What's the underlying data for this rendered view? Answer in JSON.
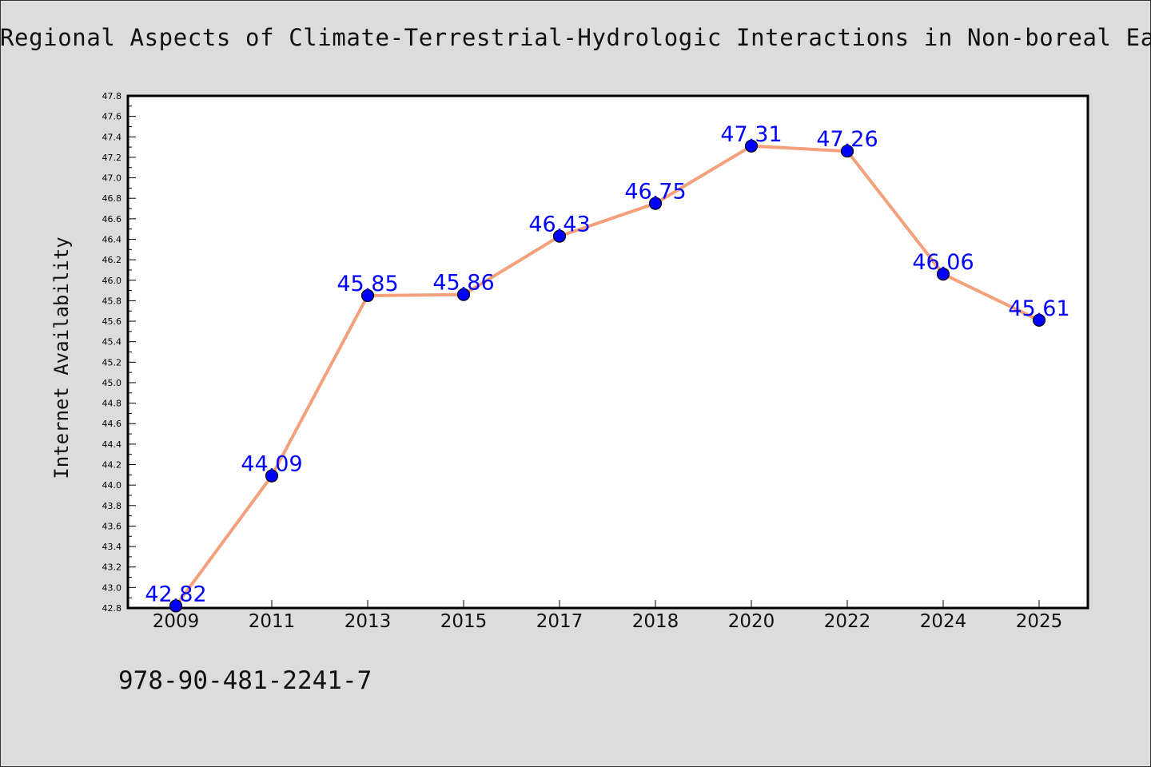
{
  "chart_data": {
    "type": "line",
    "title": "Regional Aspects of Climate-Terrestrial-Hydrologic Interactions in Non-boreal Ea",
    "xlabel": "",
    "ylabel": "Internet Availability",
    "categories": [
      "2009",
      "2011",
      "2013",
      "2015",
      "2017",
      "2018",
      "2020",
      "2022",
      "2024",
      "2025"
    ],
    "series": [
      {
        "values": [
          42.82,
          44.09,
          45.85,
          45.86,
          46.43,
          46.75,
          47.31,
          47.26,
          46.06,
          45.61
        ]
      }
    ],
    "data_labels": [
      "42.82",
      "44.09",
      "45.85",
      "45.86",
      "46.43",
      "46.75",
      "47.31",
      "47.26",
      "46.06",
      "45.61"
    ],
    "ylim": [
      42.8,
      47.8
    ],
    "yticks": [
      "42.8",
      "43.0",
      "43.2",
      "43.4",
      "43.6",
      "43.8",
      "44.0",
      "44.2",
      "44.4",
      "44.6",
      "44.8",
      "45.0",
      "45.2",
      "45.4",
      "45.6",
      "45.8",
      "46.0",
      "46.2",
      "46.4",
      "46.6",
      "46.8",
      "47.0",
      "47.2",
      "47.4",
      "47.6",
      "47.8"
    ],
    "grid": false,
    "legend": "none",
    "colors": {
      "line": "#f4a07c",
      "marker": "#0000ff",
      "data_label": "#0000ff",
      "background": "#dcdcdc",
      "plot_area": "#ffffff"
    }
  },
  "footer": {
    "isbn": "978-90-481-2241-7"
  }
}
